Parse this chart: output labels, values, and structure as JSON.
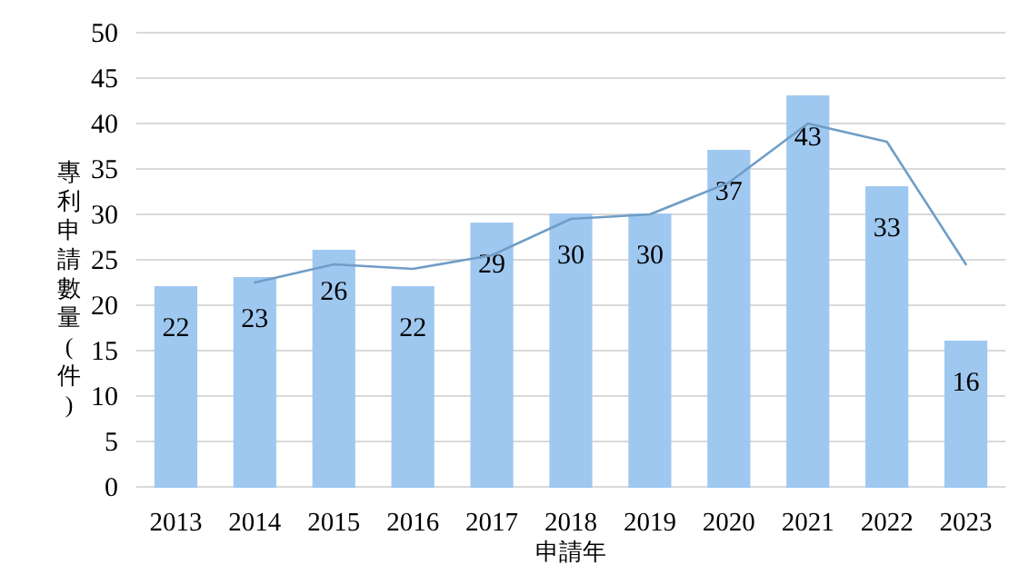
{
  "chart_data": {
    "type": "bar",
    "ylabel": "專利申請數量(件)",
    "xlabel": "申請年",
    "categories": [
      "2013",
      "2014",
      "2015",
      "2016",
      "2017",
      "2018",
      "2019",
      "2020",
      "2021",
      "2022",
      "2023"
    ],
    "series": [
      {
        "color": "#9fc8f0",
        "data_labels": true,
        "values": [
          22,
          23,
          26,
          22,
          29,
          30,
          30,
          37,
          43,
          33,
          16
        ]
      },
      {
        "type": "line",
        "color": "#6f9dc6",
        "values": [
          null,
          22.5,
          24.5,
          24,
          25.5,
          29.5,
          30,
          33.5,
          40,
          38,
          24.5
        ]
      }
    ],
    "ylim": [
      0,
      50
    ],
    "yticks": [
      0,
      5,
      10,
      15,
      20,
      25,
      30,
      35,
      40,
      45,
      50
    ],
    "grid": "y"
  }
}
